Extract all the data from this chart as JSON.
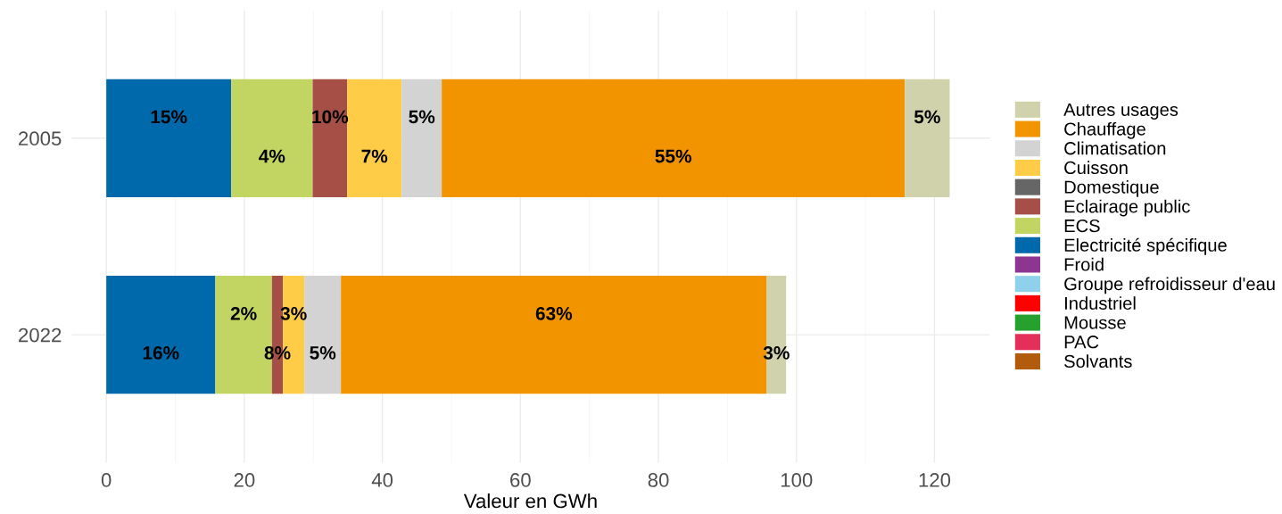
{
  "chart_data": {
    "type": "bar",
    "orientation": "horizontal",
    "stacked": true,
    "xlabel": "Valeur en GWh",
    "categories": [
      "2005",
      "2022"
    ],
    "xlim": [
      -5,
      128
    ],
    "xticks": [
      0,
      20,
      40,
      60,
      80,
      100,
      120
    ],
    "grid": true,
    "legend": "right",
    "series": [
      {
        "name": "Solvants",
        "color": "#b35b0c",
        "values": [
          0,
          0
        ]
      },
      {
        "name": "PAC",
        "color": "#e42f5b",
        "values": [
          0,
          0
        ]
      },
      {
        "name": "Mousse",
        "color": "#27a12e",
        "values": [
          0,
          0
        ]
      },
      {
        "name": "Industriel",
        "color": "#ff0000",
        "values": [
          0,
          0
        ]
      },
      {
        "name": "Groupe refroidisseur d'eau",
        "color": "#8fd0ec",
        "values": [
          0,
          0
        ]
      },
      {
        "name": "Froid",
        "color": "#8c3691",
        "values": [
          0,
          0
        ]
      },
      {
        "name": "Electricité spécifique",
        "color": "#0069ac",
        "values": [
          18.1,
          15.8
        ]
      },
      {
        "name": "ECS",
        "color": "#c2d462",
        "values": [
          11.8,
          8.2
        ]
      },
      {
        "name": "Eclairage public",
        "color": "#a64f47",
        "values": [
          5.0,
          1.6
        ]
      },
      {
        "name": "Domestique",
        "color": "#666666",
        "values": [
          0,
          0
        ]
      },
      {
        "name": "Cuisson",
        "color": "#fecc46",
        "values": [
          7.9,
          3.1
        ]
      },
      {
        "name": "Climatisation",
        "color": "#d3d3d3",
        "values": [
          5.8,
          5.3
        ]
      },
      {
        "name": "Chauffage",
        "color": "#f29400",
        "values": [
          67.1,
          61.7
        ]
      },
      {
        "name": "Autres usages",
        "color": "#d0d2ab",
        "values": [
          6.5,
          2.8
        ]
      }
    ],
    "annotations": [
      "15%",
      "4%",
      "10%",
      "7%",
      "5%",
      "55%",
      "5%",
      "16%",
      "2%",
      "8%",
      "3%",
      "5%",
      "63%",
      "3%"
    ]
  }
}
